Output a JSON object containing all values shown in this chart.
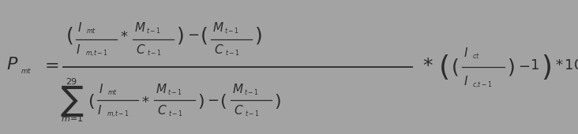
{
  "background_color": "#a3a3a3",
  "text_color": "#2b2b2b",
  "figsize": [
    7.32,
    1.7
  ],
  "dpi": 100
}
